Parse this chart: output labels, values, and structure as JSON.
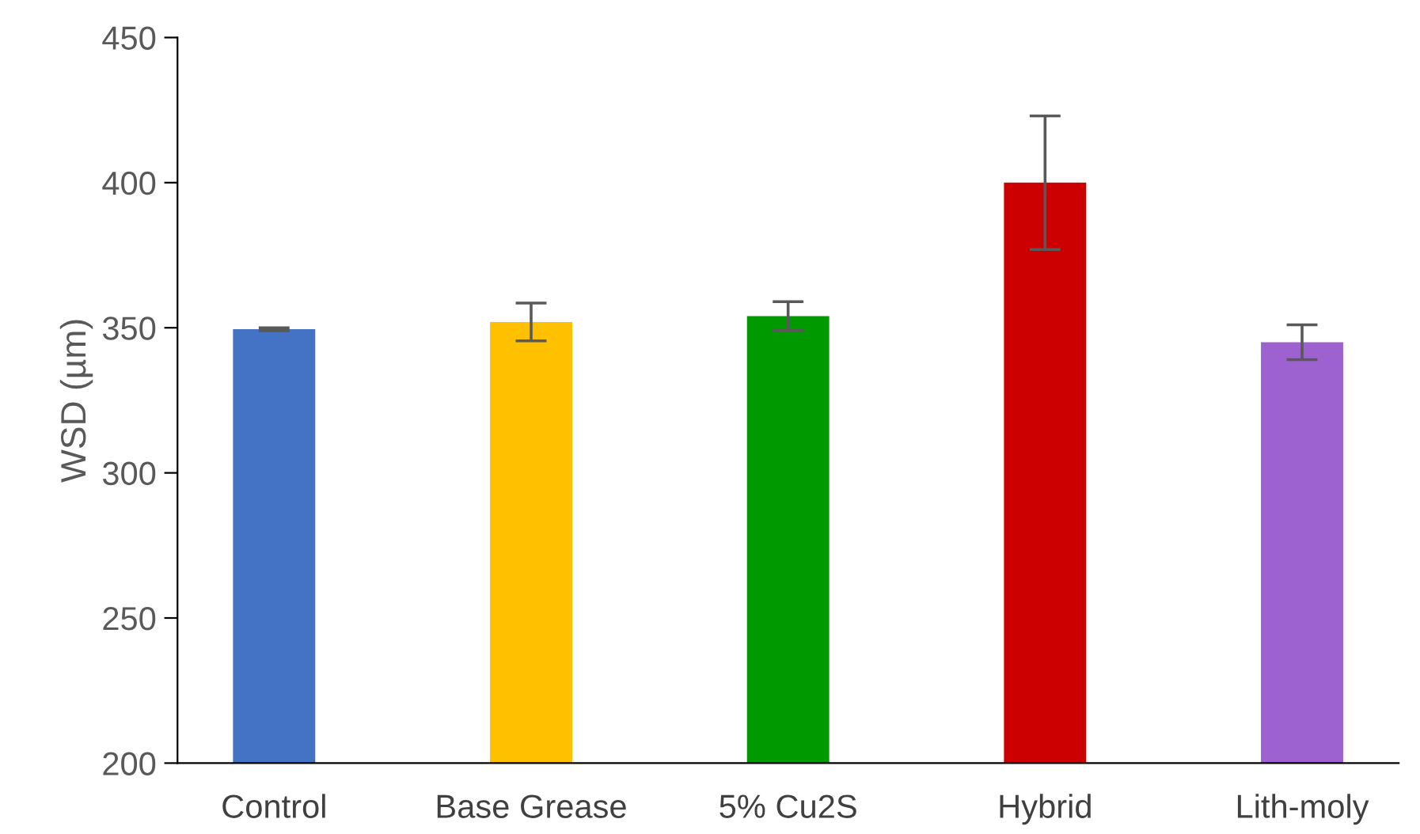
{
  "chart_data": {
    "type": "bar",
    "ylabel": "WSD (µm)",
    "categories": [
      "Control",
      "Base Grease",
      "5% Cu2S",
      "Hybrid",
      "Lith-moly"
    ],
    "values": [
      349.5,
      352,
      354,
      400,
      345
    ],
    "errors": [
      0.5,
      6.5,
      5,
      23,
      6
    ],
    "colors": [
      "#4472c4",
      "#ffc000",
      "#009900",
      "#cc0000",
      "#9e62d0"
    ],
    "ylim": [
      200,
      450
    ],
    "yticks": [
      200,
      250,
      300,
      350,
      400,
      450
    ],
    "grid": false
  }
}
